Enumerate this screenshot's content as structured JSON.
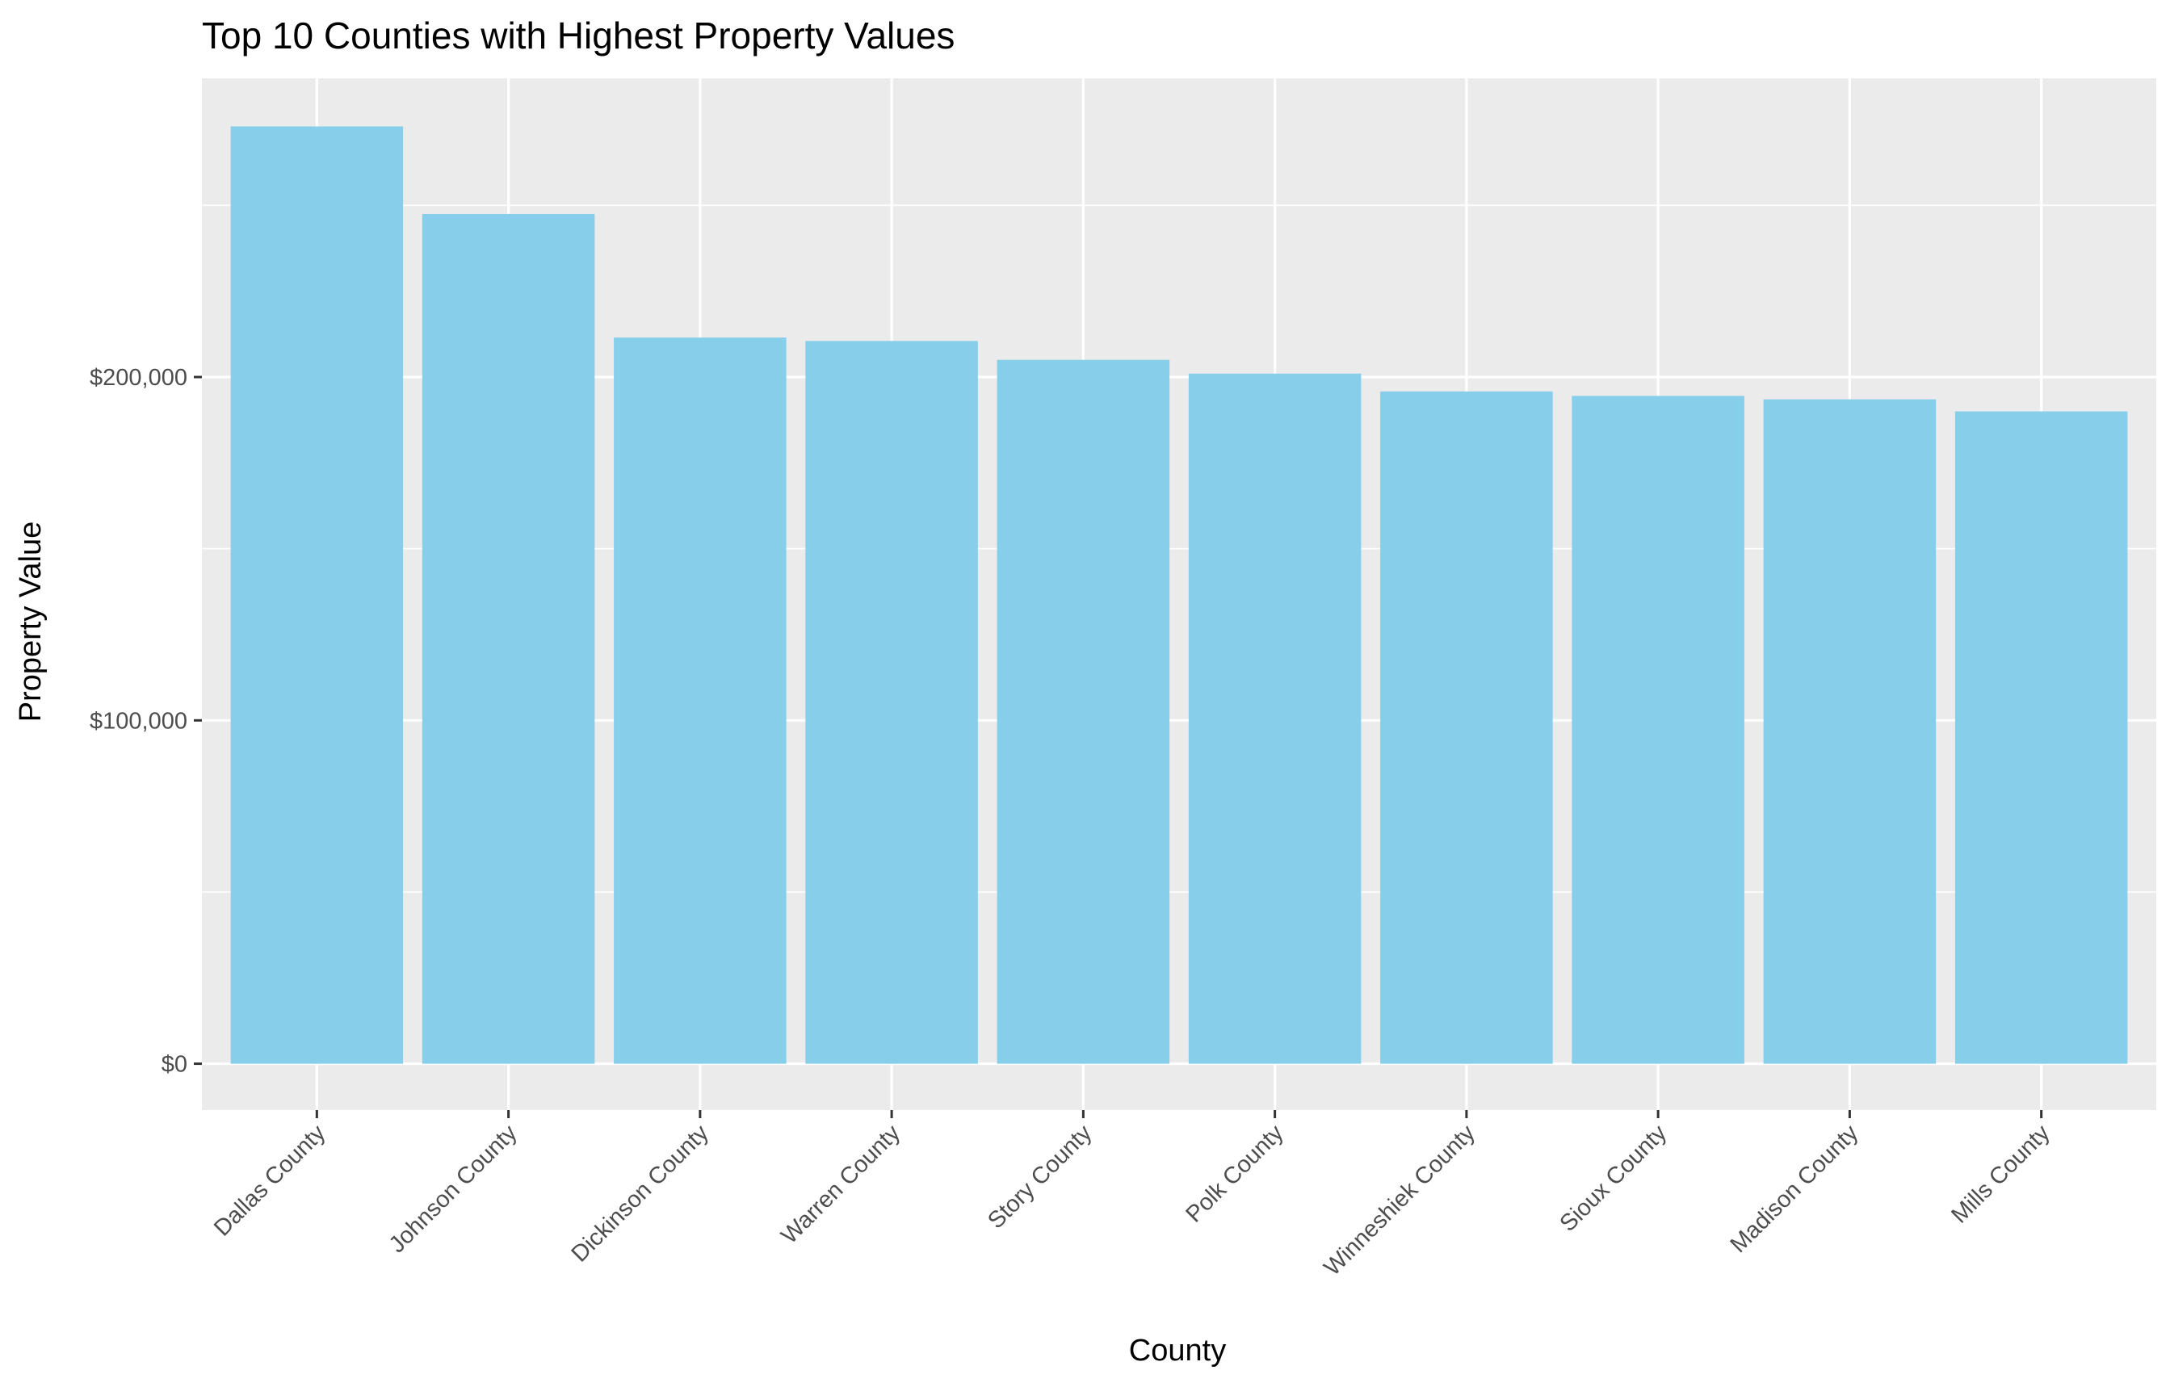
{
  "chart_data": {
    "type": "bar",
    "title": "Top 10 Counties with Highest Property Values",
    "xlabel": "County",
    "ylabel": "Property Value",
    "categories": [
      "Dallas County",
      "Johnson County",
      "Dickinson County",
      "Warren County",
      "Story County",
      "Polk County",
      "Winneshiek County",
      "Sioux County",
      "Madison County",
      "Mills County"
    ],
    "values": [
      273000,
      247500,
      211500,
      210500,
      205000,
      201000,
      195800,
      194500,
      193500,
      190000
    ],
    "ylim": [
      -13500,
      287000
    ],
    "yticks": [
      0,
      100000,
      200000
    ],
    "ytick_labels": [
      "$0",
      "$100,000",
      "$200,000"
    ],
    "grid": true,
    "legend": "none",
    "colors": {
      "bar": "#87ceeb",
      "panel": "#ebebeb",
      "grid": "#ffffff",
      "tick_text": "#4d4d4d",
      "tick_mark": "#333333"
    }
  }
}
